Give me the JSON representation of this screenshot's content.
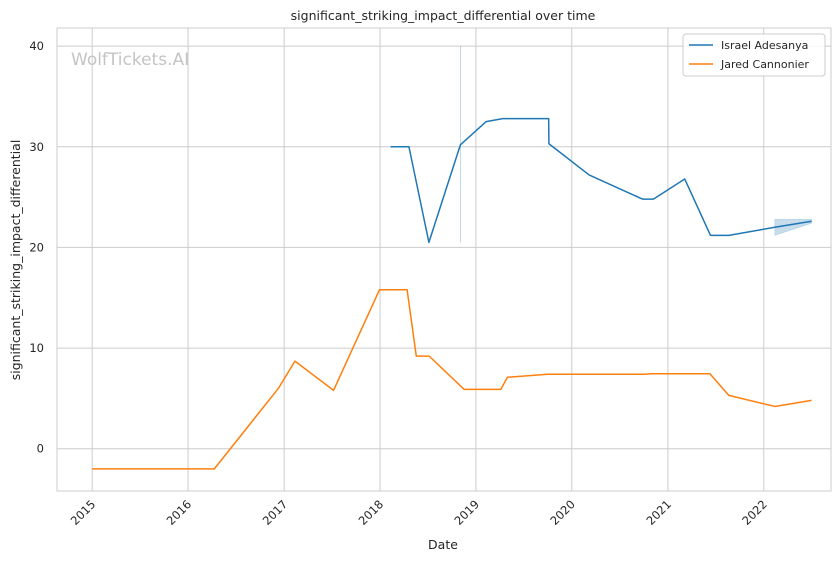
{
  "chart_data": {
    "type": "line",
    "title": "significant_striking_impact_differential over time",
    "xlabel": "Date",
    "ylabel": "significant_striking_impact_differential",
    "watermark": "WolfTickets.AI",
    "xlim": [
      "2014-08-20",
      "2022-09-14"
    ],
    "ylim": [
      -4.2,
      41.8
    ],
    "x_ticks": [
      "2015",
      "2016",
      "2017",
      "2018",
      "2019",
      "2020",
      "2021",
      "2022"
    ],
    "y_ticks": [
      0,
      10,
      20,
      30,
      40
    ],
    "grid": true,
    "legend_position": "top-right",
    "series": [
      {
        "name": "Israel Adesanya",
        "color": "#1f77b4",
        "points": [
          [
            "2018-02-10",
            30.0
          ],
          [
            "2018-04-21",
            30.0
          ],
          [
            "2018-07-06",
            20.5
          ],
          [
            "2018-11-03",
            30.2
          ],
          [
            "2019-02-09",
            32.5
          ],
          [
            "2019-04-13",
            32.8
          ],
          [
            "2019-10-05",
            32.8
          ],
          [
            "2019-10-06",
            30.3
          ],
          [
            "2020-03-07",
            27.2
          ],
          [
            "2020-09-26",
            24.8
          ],
          [
            "2020-11-07",
            24.8
          ],
          [
            "2021-03-06",
            26.8
          ],
          [
            "2021-06-12",
            21.2
          ],
          [
            "2021-08-21",
            21.2
          ],
          [
            "2022-02-12",
            22.0
          ],
          [
            "2022-07-02",
            22.6
          ]
        ],
        "bands": [
          {
            "x": [
              "2018-11-03",
              "2018-11-04"
            ],
            "low": [
              20.5,
              20.5
            ],
            "high": [
              40.0,
              40.0
            ]
          },
          {
            "x": [
              "2022-02-12",
              "2022-07-02"
            ],
            "low": [
              21.2,
              22.4
            ],
            "high": [
              22.8,
              22.8
            ]
          }
        ]
      },
      {
        "name": "Jared Cannonier",
        "color": "#ff7f0e",
        "points": [
          [
            "2015-01-01",
            -2.0
          ],
          [
            "2016-04-10",
            -2.0
          ],
          [
            "2016-12-10",
            6.0
          ],
          [
            "2017-02-11",
            8.7
          ],
          [
            "2017-07-08",
            5.8
          ],
          [
            "2017-12-30",
            15.8
          ],
          [
            "2018-04-14",
            15.8
          ],
          [
            "2018-05-19",
            9.2
          ],
          [
            "2018-07-07",
            9.2
          ],
          [
            "2018-11-17",
            5.9
          ],
          [
            "2019-04-06",
            5.9
          ],
          [
            "2019-05-01",
            7.1
          ],
          [
            "2019-10-01",
            7.4
          ],
          [
            "2020-10-01",
            7.4
          ],
          [
            "2020-11-01",
            7.45
          ],
          [
            "2021-06-10",
            7.45
          ],
          [
            "2021-08-21",
            5.3
          ],
          [
            "2022-02-12",
            4.2
          ],
          [
            "2022-07-02",
            4.8
          ]
        ]
      }
    ]
  }
}
